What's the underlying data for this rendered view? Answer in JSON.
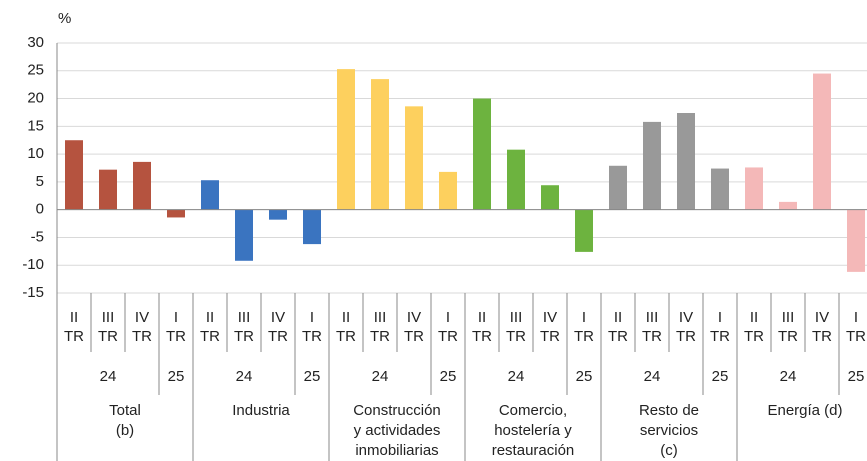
{
  "chart_data": {
    "type": "bar",
    "y_label": "%",
    "ylim": [
      -15,
      30
    ],
    "yticks": [
      -15,
      -10,
      -5,
      0,
      5,
      10,
      15,
      20,
      25,
      30
    ],
    "grid": true,
    "groups": [
      {
        "label": [
          "Total",
          "(b)"
        ],
        "color": "#b5533f",
        "years": [
          "24",
          "25"
        ],
        "quarters": [
          [
            "II",
            "TR"
          ],
          [
            "III",
            "TR"
          ],
          [
            "IV",
            "TR"
          ],
          [
            "I",
            "TR"
          ]
        ],
        "values": [
          12.5,
          7.2,
          8.6,
          -1.4
        ]
      },
      {
        "label": [
          "Industria"
        ],
        "color": "#3a74c0",
        "years": [
          "24",
          "25"
        ],
        "quarters": [
          [
            "II",
            "TR"
          ],
          [
            "III",
            "TR"
          ],
          [
            "IV",
            "TR"
          ],
          [
            "I",
            "TR"
          ]
        ],
        "values": [
          5.3,
          -9.2,
          -1.8,
          -6.2
        ]
      },
      {
        "label": [
          "Construcción",
          "y actividades",
          "inmobiliarias"
        ],
        "color": "#fdd05e",
        "years": [
          "24",
          "25"
        ],
        "quarters": [
          [
            "II",
            "TR"
          ],
          [
            "III",
            "TR"
          ],
          [
            "IV",
            "TR"
          ],
          [
            "I",
            "TR"
          ]
        ],
        "values": [
          25.3,
          23.5,
          18.6,
          6.8
        ]
      },
      {
        "label": [
          "Comercio,",
          "hostelería y",
          "restauración"
        ],
        "color": "#6db33f",
        "years": [
          "24",
          "25"
        ],
        "quarters": [
          [
            "II",
            "TR"
          ],
          [
            "III",
            "TR"
          ],
          [
            "IV",
            "TR"
          ],
          [
            "I",
            "TR"
          ]
        ],
        "values": [
          20.0,
          10.8,
          4.4,
          -7.6
        ]
      },
      {
        "label": [
          "Resto de",
          "servicios",
          "(c)"
        ],
        "color": "#999999",
        "years": [
          "24",
          "25"
        ],
        "quarters": [
          [
            "II",
            "TR"
          ],
          [
            "III",
            "TR"
          ],
          [
            "IV",
            "TR"
          ],
          [
            "I",
            "TR"
          ]
        ],
        "values": [
          7.9,
          15.8,
          17.4,
          7.4
        ]
      },
      {
        "label": [
          "Energía (d)"
        ],
        "color": "#f4b8b8",
        "years": [
          "24",
          "25"
        ],
        "quarters": [
          [
            "II",
            "TR"
          ],
          [
            "III",
            "TR"
          ],
          [
            "IV",
            "TR"
          ],
          [
            "I",
            "TR"
          ]
        ],
        "values": [
          7.6,
          1.4,
          24.5,
          -11.2
        ]
      }
    ]
  }
}
